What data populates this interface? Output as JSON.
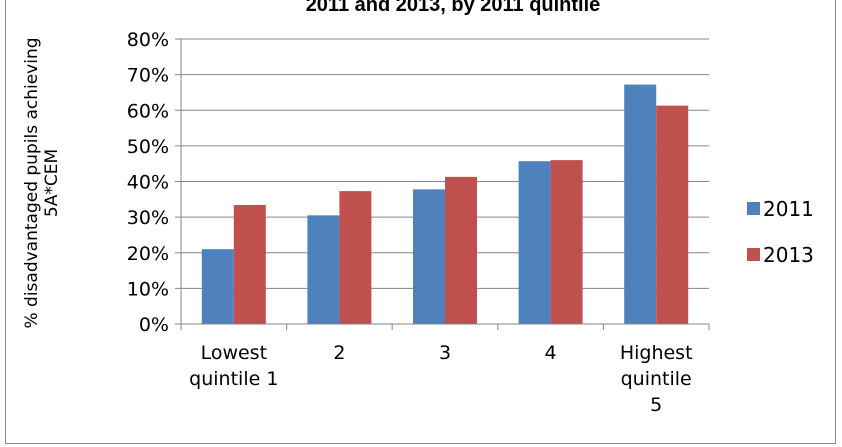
{
  "chart_data": {
    "type": "bar",
    "title": "2011 and 2013, by 2011 quintile",
    "ylabel_lines": [
      "% disadvantaged pupils achieving",
      "5A*CEM"
    ],
    "xlabel": "",
    "categories": [
      [
        "Lowest",
        "quintile 1"
      ],
      [
        "2"
      ],
      [
        "3"
      ],
      [
        "4"
      ],
      [
        "Highest",
        "quintile",
        "5"
      ]
    ],
    "series": [
      {
        "name": "2011",
        "color": "#4f81bd",
        "values": [
          0.21,
          0.305,
          0.378,
          0.457,
          0.672
        ]
      },
      {
        "name": "2013",
        "color": "#c0504d",
        "values": [
          0.334,
          0.373,
          0.413,
          0.46,
          0.613
        ]
      }
    ],
    "ylim": [
      0,
      0.8
    ],
    "yticks": [
      "0%",
      "10%",
      "20%",
      "30%",
      "40%",
      "50%",
      "60%",
      "70%",
      "80%"
    ],
    "grid": true,
    "legend_position": "right"
  }
}
